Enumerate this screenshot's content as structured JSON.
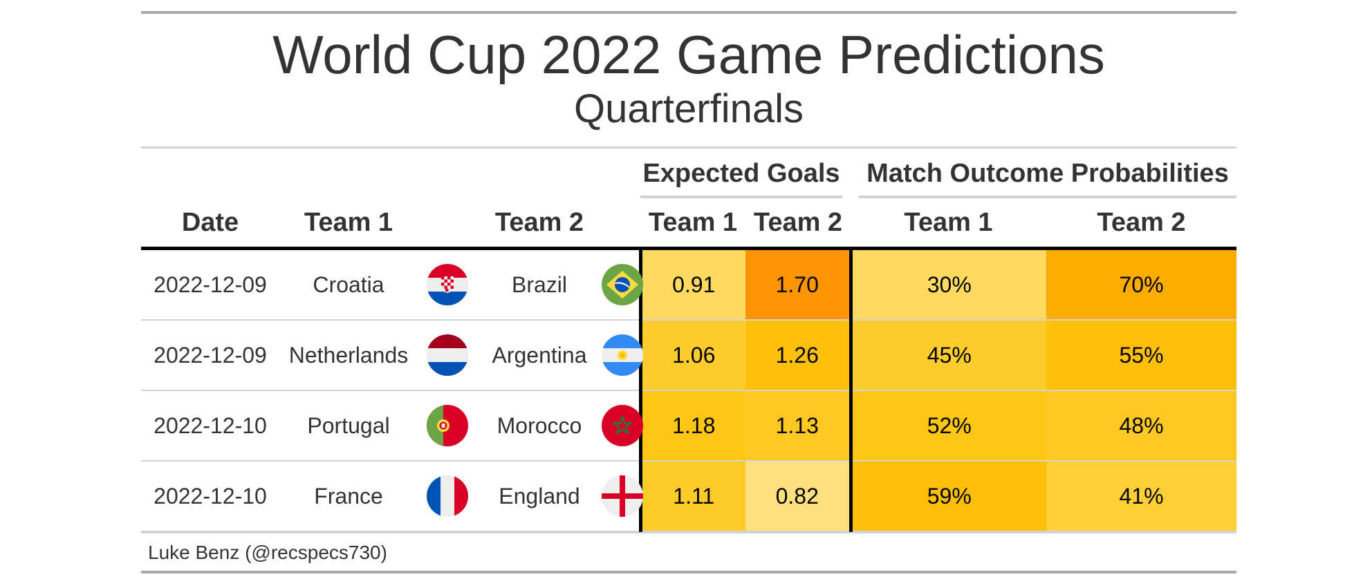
{
  "title": "World Cup 2022 Game Predictions",
  "subtitle": "Quarterfinals",
  "spanners": {
    "expected_goals": "Expected Goals",
    "outcome_probs": "Match Outcome Probabilities"
  },
  "columns": {
    "date": "Date",
    "team1": "Team 1",
    "team2": "Team 2",
    "xg_team1": "Team 1",
    "xg_team2": "Team 2",
    "prob_team1": "Team 1",
    "prob_team2": "Team 2"
  },
  "rows": [
    {
      "date": "2022-12-09",
      "team1": "Croatia",
      "team1_flag": "croatia-flag",
      "team2": "Brazil",
      "team2_flag": "brazil-flag",
      "xg1": "0.91",
      "xg2": "1.70",
      "p1": "30%",
      "p2": "70%",
      "xg1_color": "#ffd960",
      "xg2_color": "#ff9506",
      "p1_color": "#ffd960",
      "p2_color": "#ffac00"
    },
    {
      "date": "2022-12-09",
      "team1": "Netherlands",
      "team1_flag": "netherlands-flag",
      "team2": "Argentina",
      "team2_flag": "argentina-flag",
      "xg1": "1.06",
      "xg2": "1.26",
      "p1": "45%",
      "p2": "55%",
      "xg1_color": "#ffcc2e",
      "xg2_color": "#ffbf0a",
      "p1_color": "#ffcc2e",
      "p2_color": "#ffbf0a"
    },
    {
      "date": "2022-12-10",
      "team1": "Portugal",
      "team1_flag": "portugal-flag",
      "team2": "Morocco",
      "team2_flag": "morocco-flag",
      "xg1": "1.18",
      "xg2": "1.13",
      "p1": "52%",
      "p2": "48%",
      "xg1_color": "#ffc616",
      "xg2_color": "#ffc822",
      "p1_color": "#ffc616",
      "p2_color": "#ffc822"
    },
    {
      "date": "2022-12-10",
      "team1": "France",
      "team1_flag": "france-flag",
      "team2": "England",
      "team2_flag": "england-flag",
      "xg1": "1.11",
      "xg2": "0.82",
      "p1": "59%",
      "p2": "41%",
      "xg1_color": "#ffcb28",
      "xg2_color": "#ffe080",
      "p1_color": "#ffbf08",
      "p2_color": "#ffcf36"
    }
  ],
  "source_note": "Luke Benz (@recspecs730)"
}
